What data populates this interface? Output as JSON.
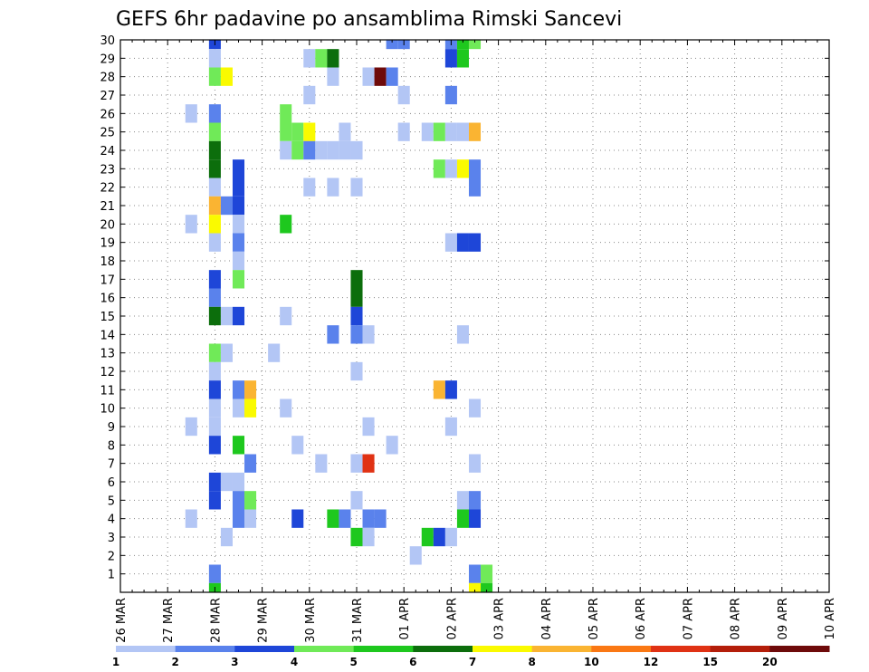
{
  "chart_data": {
    "type": "heatmap",
    "title": "GEFS 6hr padavine po ansamblima Rimski Sancevi",
    "x_tick_labels": [
      "26 MAR",
      "27 MAR",
      "28 MAR",
      "29 MAR",
      "30 MAR",
      "31 MAR",
      "01 APR",
      "02 APR",
      "03 APR",
      "04 APR",
      "05 APR",
      "06 APR",
      "07 APR",
      "08 APR",
      "09 APR",
      "10 APR"
    ],
    "x_unit": "6-hour step (4 per day), step 0 = 26 MAR 00z",
    "y_tick_labels": [
      "1",
      "2",
      "3",
      "4",
      "5",
      "6",
      "7",
      "8",
      "9",
      "10",
      "11",
      "12",
      "13",
      "14",
      "15",
      "16",
      "17",
      "18",
      "19",
      "20",
      "21",
      "22",
      "23",
      "24",
      "25",
      "26",
      "27",
      "28",
      "29",
      "30"
    ],
    "ylim": [
      0,
      30
    ],
    "grid": true,
    "legend_placement": "bottom",
    "legend": {
      "labels": [
        "1",
        "2",
        "3",
        "4",
        "5",
        "6",
        "7",
        "8",
        "10",
        "12",
        "15",
        "20"
      ],
      "colors": [
        "#b3c6f5",
        "#5a82ec",
        "#1e46d8",
        "#70ea58",
        "#1ec81e",
        "#0c6e0c",
        "#fafa00",
        "#fab432",
        "#fa7814",
        "#e03214",
        "#b41e0a",
        "#6e0a0a"
      ]
    },
    "cells": [
      {
        "member": 30,
        "step": 8,
        "color": "#1e46d8"
      },
      {
        "member": 30,
        "step": 23,
        "color": "#5a82ec"
      },
      {
        "member": 30,
        "step": 24,
        "color": "#5a82ec"
      },
      {
        "member": 30,
        "step": 28,
        "color": "#5a82ec"
      },
      {
        "member": 30,
        "step": 29,
        "color": "#1ec81e"
      },
      {
        "member": 30,
        "step": 30,
        "color": "#70ea58"
      },
      {
        "member": 29,
        "step": 8,
        "color": "#b3c6f5"
      },
      {
        "member": 29,
        "step": 16,
        "color": "#b3c6f5"
      },
      {
        "member": 29,
        "step": 17,
        "color": "#70ea58"
      },
      {
        "member": 29,
        "step": 18,
        "color": "#0c6e0c"
      },
      {
        "member": 29,
        "step": 28,
        "color": "#1e46d8"
      },
      {
        "member": 29,
        "step": 29,
        "color": "#1ec81e"
      },
      {
        "member": 28,
        "step": 8,
        "color": "#70ea58"
      },
      {
        "member": 28,
        "step": 9,
        "color": "#fafa00"
      },
      {
        "member": 28,
        "step": 18,
        "color": "#b3c6f5"
      },
      {
        "member": 28,
        "step": 21,
        "color": "#b3c6f5"
      },
      {
        "member": 28,
        "step": 22,
        "color": "#6e0a0a"
      },
      {
        "member": 28,
        "step": 23,
        "color": "#5a82ec"
      },
      {
        "member": 27,
        "step": 16,
        "color": "#b3c6f5"
      },
      {
        "member": 27,
        "step": 24,
        "color": "#b3c6f5"
      },
      {
        "member": 27,
        "step": 28,
        "color": "#5a82ec"
      },
      {
        "member": 26,
        "step": 6,
        "color": "#b3c6f5"
      },
      {
        "member": 26,
        "step": 8,
        "color": "#5a82ec"
      },
      {
        "member": 26,
        "step": 14,
        "color": "#70ea58"
      },
      {
        "member": 25,
        "step": 8,
        "color": "#70ea58"
      },
      {
        "member": 25,
        "step": 14,
        "color": "#70ea58"
      },
      {
        "member": 25,
        "step": 15,
        "color": "#70ea58"
      },
      {
        "member": 25,
        "step": 16,
        "color": "#fafa00"
      },
      {
        "member": 25,
        "step": 19,
        "color": "#b3c6f5"
      },
      {
        "member": 25,
        "step": 24,
        "color": "#b3c6f5"
      },
      {
        "member": 25,
        "step": 26,
        "color": "#b3c6f5"
      },
      {
        "member": 25,
        "step": 27,
        "color": "#70ea58"
      },
      {
        "member": 25,
        "step": 28,
        "color": "#b3c6f5"
      },
      {
        "member": 25,
        "step": 29,
        "color": "#b3c6f5"
      },
      {
        "member": 25,
        "step": 30,
        "color": "#fab432"
      },
      {
        "member": 24,
        "step": 8,
        "color": "#0c6e0c"
      },
      {
        "member": 24,
        "step": 14,
        "color": "#b3c6f5"
      },
      {
        "member": 24,
        "step": 15,
        "color": "#70ea58"
      },
      {
        "member": 24,
        "step": 16,
        "color": "#5a82ec"
      },
      {
        "member": 24,
        "step": 17,
        "color": "#b3c6f5"
      },
      {
        "member": 24,
        "step": 18,
        "color": "#b3c6f5"
      },
      {
        "member": 24,
        "step": 19,
        "color": "#b3c6f5"
      },
      {
        "member": 24,
        "step": 20,
        "color": "#b3c6f5"
      },
      {
        "member": 23,
        "step": 8,
        "color": "#0c6e0c"
      },
      {
        "member": 23,
        "step": 10,
        "color": "#1e46d8"
      },
      {
        "member": 23,
        "step": 27,
        "color": "#70ea58"
      },
      {
        "member": 23,
        "step": 28,
        "color": "#b3c6f5"
      },
      {
        "member": 23,
        "step": 29,
        "color": "#fafa00"
      },
      {
        "member": 23,
        "step": 30,
        "color": "#5a82ec"
      },
      {
        "member": 22,
        "step": 8,
        "color": "#b3c6f5"
      },
      {
        "member": 22,
        "step": 10,
        "color": "#1e46d8"
      },
      {
        "member": 22,
        "step": 16,
        "color": "#b3c6f5"
      },
      {
        "member": 22,
        "step": 18,
        "color": "#b3c6f5"
      },
      {
        "member": 22,
        "step": 20,
        "color": "#b3c6f5"
      },
      {
        "member": 22,
        "step": 30,
        "color": "#5a82ec"
      },
      {
        "member": 21,
        "step": 8,
        "color": "#fab432"
      },
      {
        "member": 21,
        "step": 9,
        "color": "#5a82ec"
      },
      {
        "member": 21,
        "step": 10,
        "color": "#1e46d8"
      },
      {
        "member": 20,
        "step": 6,
        "color": "#b3c6f5"
      },
      {
        "member": 20,
        "step": 8,
        "color": "#fafa00"
      },
      {
        "member": 20,
        "step": 10,
        "color": "#b3c6f5"
      },
      {
        "member": 20,
        "step": 14,
        "color": "#1ec81e"
      },
      {
        "member": 19,
        "step": 8,
        "color": "#b3c6f5"
      },
      {
        "member": 19,
        "step": 10,
        "color": "#5a82ec"
      },
      {
        "member": 19,
        "step": 28,
        "color": "#b3c6f5"
      },
      {
        "member": 19,
        "step": 29,
        "color": "#1e46d8"
      },
      {
        "member": 19,
        "step": 30,
        "color": "#1e46d8"
      },
      {
        "member": 18,
        "step": 10,
        "color": "#b3c6f5"
      },
      {
        "member": 17,
        "step": 8,
        "color": "#1e46d8"
      },
      {
        "member": 17,
        "step": 10,
        "color": "#70ea58"
      },
      {
        "member": 17,
        "step": 20,
        "color": "#0c6e0c"
      },
      {
        "member": 16,
        "step": 8,
        "color": "#5a82ec"
      },
      {
        "member": 16,
        "step": 20,
        "color": "#0c6e0c"
      },
      {
        "member": 15,
        "step": 8,
        "color": "#0c6e0c"
      },
      {
        "member": 15,
        "step": 9,
        "color": "#b3c6f5"
      },
      {
        "member": 15,
        "step": 10,
        "color": "#1e46d8"
      },
      {
        "member": 15,
        "step": 14,
        "color": "#b3c6f5"
      },
      {
        "member": 15,
        "step": 20,
        "color": "#1e46d8"
      },
      {
        "member": 14,
        "step": 18,
        "color": "#5a82ec"
      },
      {
        "member": 14,
        "step": 20,
        "color": "#5a82ec"
      },
      {
        "member": 14,
        "step": 21,
        "color": "#b3c6f5"
      },
      {
        "member": 14,
        "step": 29,
        "color": "#b3c6f5"
      },
      {
        "member": 13,
        "step": 8,
        "color": "#70ea58"
      },
      {
        "member": 13,
        "step": 9,
        "color": "#b3c6f5"
      },
      {
        "member": 13,
        "step": 13,
        "color": "#b3c6f5"
      },
      {
        "member": 12,
        "step": 8,
        "color": "#b3c6f5"
      },
      {
        "member": 12,
        "step": 20,
        "color": "#b3c6f5"
      },
      {
        "member": 11,
        "step": 8,
        "color": "#1e46d8"
      },
      {
        "member": 11,
        "step": 10,
        "color": "#5a82ec"
      },
      {
        "member": 11,
        "step": 11,
        "color": "#fab432"
      },
      {
        "member": 11,
        "step": 27,
        "color": "#fab432"
      },
      {
        "member": 11,
        "step": 28,
        "color": "#1e46d8"
      },
      {
        "member": 10,
        "step": 8,
        "color": "#b3c6f5"
      },
      {
        "member": 10,
        "step": 10,
        "color": "#b3c6f5"
      },
      {
        "member": 10,
        "step": 11,
        "color": "#fafa00"
      },
      {
        "member": 10,
        "step": 14,
        "color": "#b3c6f5"
      },
      {
        "member": 10,
        "step": 30,
        "color": "#b3c6f5"
      },
      {
        "member": 9,
        "step": 6,
        "color": "#b3c6f5"
      },
      {
        "member": 9,
        "step": 8,
        "color": "#b3c6f5"
      },
      {
        "member": 9,
        "step": 21,
        "color": "#b3c6f5"
      },
      {
        "member": 9,
        "step": 28,
        "color": "#b3c6f5"
      },
      {
        "member": 8,
        "step": 8,
        "color": "#1e46d8"
      },
      {
        "member": 8,
        "step": 10,
        "color": "#1ec81e"
      },
      {
        "member": 8,
        "step": 15,
        "color": "#b3c6f5"
      },
      {
        "member": 8,
        "step": 23,
        "color": "#b3c6f5"
      },
      {
        "member": 7,
        "step": 11,
        "color": "#5a82ec"
      },
      {
        "member": 7,
        "step": 17,
        "color": "#b3c6f5"
      },
      {
        "member": 7,
        "step": 20,
        "color": "#b3c6f5"
      },
      {
        "member": 7,
        "step": 21,
        "color": "#e03214"
      },
      {
        "member": 7,
        "step": 30,
        "color": "#b3c6f5"
      },
      {
        "member": 6,
        "step": 8,
        "color": "#1e46d8"
      },
      {
        "member": 6,
        "step": 9,
        "color": "#b3c6f5"
      },
      {
        "member": 6,
        "step": 10,
        "color": "#b3c6f5"
      },
      {
        "member": 5,
        "step": 8,
        "color": "#1e46d8"
      },
      {
        "member": 5,
        "step": 10,
        "color": "#5a82ec"
      },
      {
        "member": 5,
        "step": 11,
        "color": "#70ea58"
      },
      {
        "member": 5,
        "step": 20,
        "color": "#b3c6f5"
      },
      {
        "member": 5,
        "step": 29,
        "color": "#b3c6f5"
      },
      {
        "member": 5,
        "step": 30,
        "color": "#5a82ec"
      },
      {
        "member": 4,
        "step": 6,
        "color": "#b3c6f5"
      },
      {
        "member": 4,
        "step": 10,
        "color": "#5a82ec"
      },
      {
        "member": 4,
        "step": 11,
        "color": "#b3c6f5"
      },
      {
        "member": 4,
        "step": 15,
        "color": "#1e46d8"
      },
      {
        "member": 4,
        "step": 18,
        "color": "#1ec81e"
      },
      {
        "member": 4,
        "step": 19,
        "color": "#5a82ec"
      },
      {
        "member": 4,
        "step": 21,
        "color": "#5a82ec"
      },
      {
        "member": 4,
        "step": 22,
        "color": "#5a82ec"
      },
      {
        "member": 4,
        "step": 29,
        "color": "#1ec81e"
      },
      {
        "member": 4,
        "step": 30,
        "color": "#1e46d8"
      },
      {
        "member": 3,
        "step": 9,
        "color": "#b3c6f5"
      },
      {
        "member": 3,
        "step": 20,
        "color": "#1ec81e"
      },
      {
        "member": 3,
        "step": 21,
        "color": "#b3c6f5"
      },
      {
        "member": 3,
        "step": 26,
        "color": "#1ec81e"
      },
      {
        "member": 3,
        "step": 27,
        "color": "#1e46d8"
      },
      {
        "member": 3,
        "step": 28,
        "color": "#b3c6f5"
      },
      {
        "member": 2,
        "step": 25,
        "color": "#b3c6f5"
      },
      {
        "member": 1,
        "step": 8,
        "color": "#5a82ec"
      },
      {
        "member": 1,
        "step": 30,
        "color": "#5a82ec"
      },
      {
        "member": 1,
        "step": 31,
        "color": "#70ea58"
      },
      {
        "member": 0,
        "step": 8,
        "color": "#1ec81e"
      },
      {
        "member": 0,
        "step": 30,
        "color": "#fafa00"
      },
      {
        "member": 0,
        "step": 31,
        "color": "#1ec81e"
      }
    ]
  }
}
